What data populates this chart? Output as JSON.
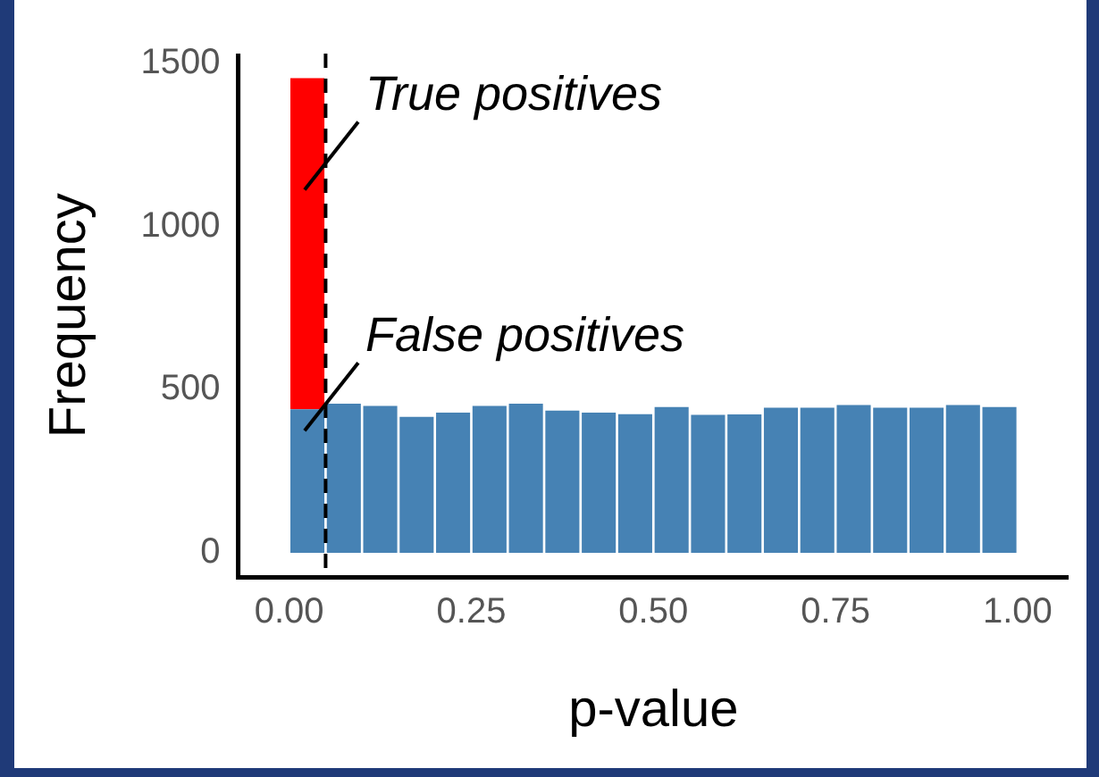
{
  "chart_data": {
    "type": "bar",
    "xlabel": "p-value",
    "ylabel": "Frequency",
    "x": [
      0.025,
      0.075,
      0.125,
      0.175,
      0.225,
      0.275,
      0.325,
      0.375,
      0.425,
      0.475,
      0.525,
      0.575,
      0.625,
      0.675,
      0.725,
      0.775,
      0.825,
      0.875,
      0.925,
      0.975
    ],
    "stacked": true,
    "series": [
      {
        "color": "#4682b4",
        "values": [
          440,
          457,
          450,
          417,
          430,
          450,
          457,
          436,
          430,
          425,
          447,
          423,
          424,
          445,
          445,
          453,
          445,
          445,
          453,
          447
        ]
      },
      {
        "color": "#ff0000",
        "values": [
          1015,
          0,
          0,
          0,
          0,
          0,
          0,
          0,
          0,
          0,
          0,
          0,
          0,
          0,
          0,
          0,
          0,
          0,
          0,
          0
        ]
      }
    ],
    "xlim": [
      -0.07,
      1.07
    ],
    "ylim": [
      -75,
      1530
    ],
    "xticks": [
      {
        "value": 0,
        "label": "0.00"
      },
      {
        "value": 0.25,
        "label": "0.25"
      },
      {
        "value": 0.5,
        "label": "0.50"
      },
      {
        "value": 0.75,
        "label": "0.75"
      },
      {
        "value": 1,
        "label": "1.00"
      }
    ],
    "yticks": [
      0,
      500,
      1000,
      1500
    ],
    "ref_lines": [
      {
        "axis": "x",
        "value": 0.05,
        "color": "#000000",
        "line_style": "dashed"
      }
    ],
    "annotations": [
      "True positives",
      "False positives"
    ],
    "grid": false,
    "legend": false
  }
}
